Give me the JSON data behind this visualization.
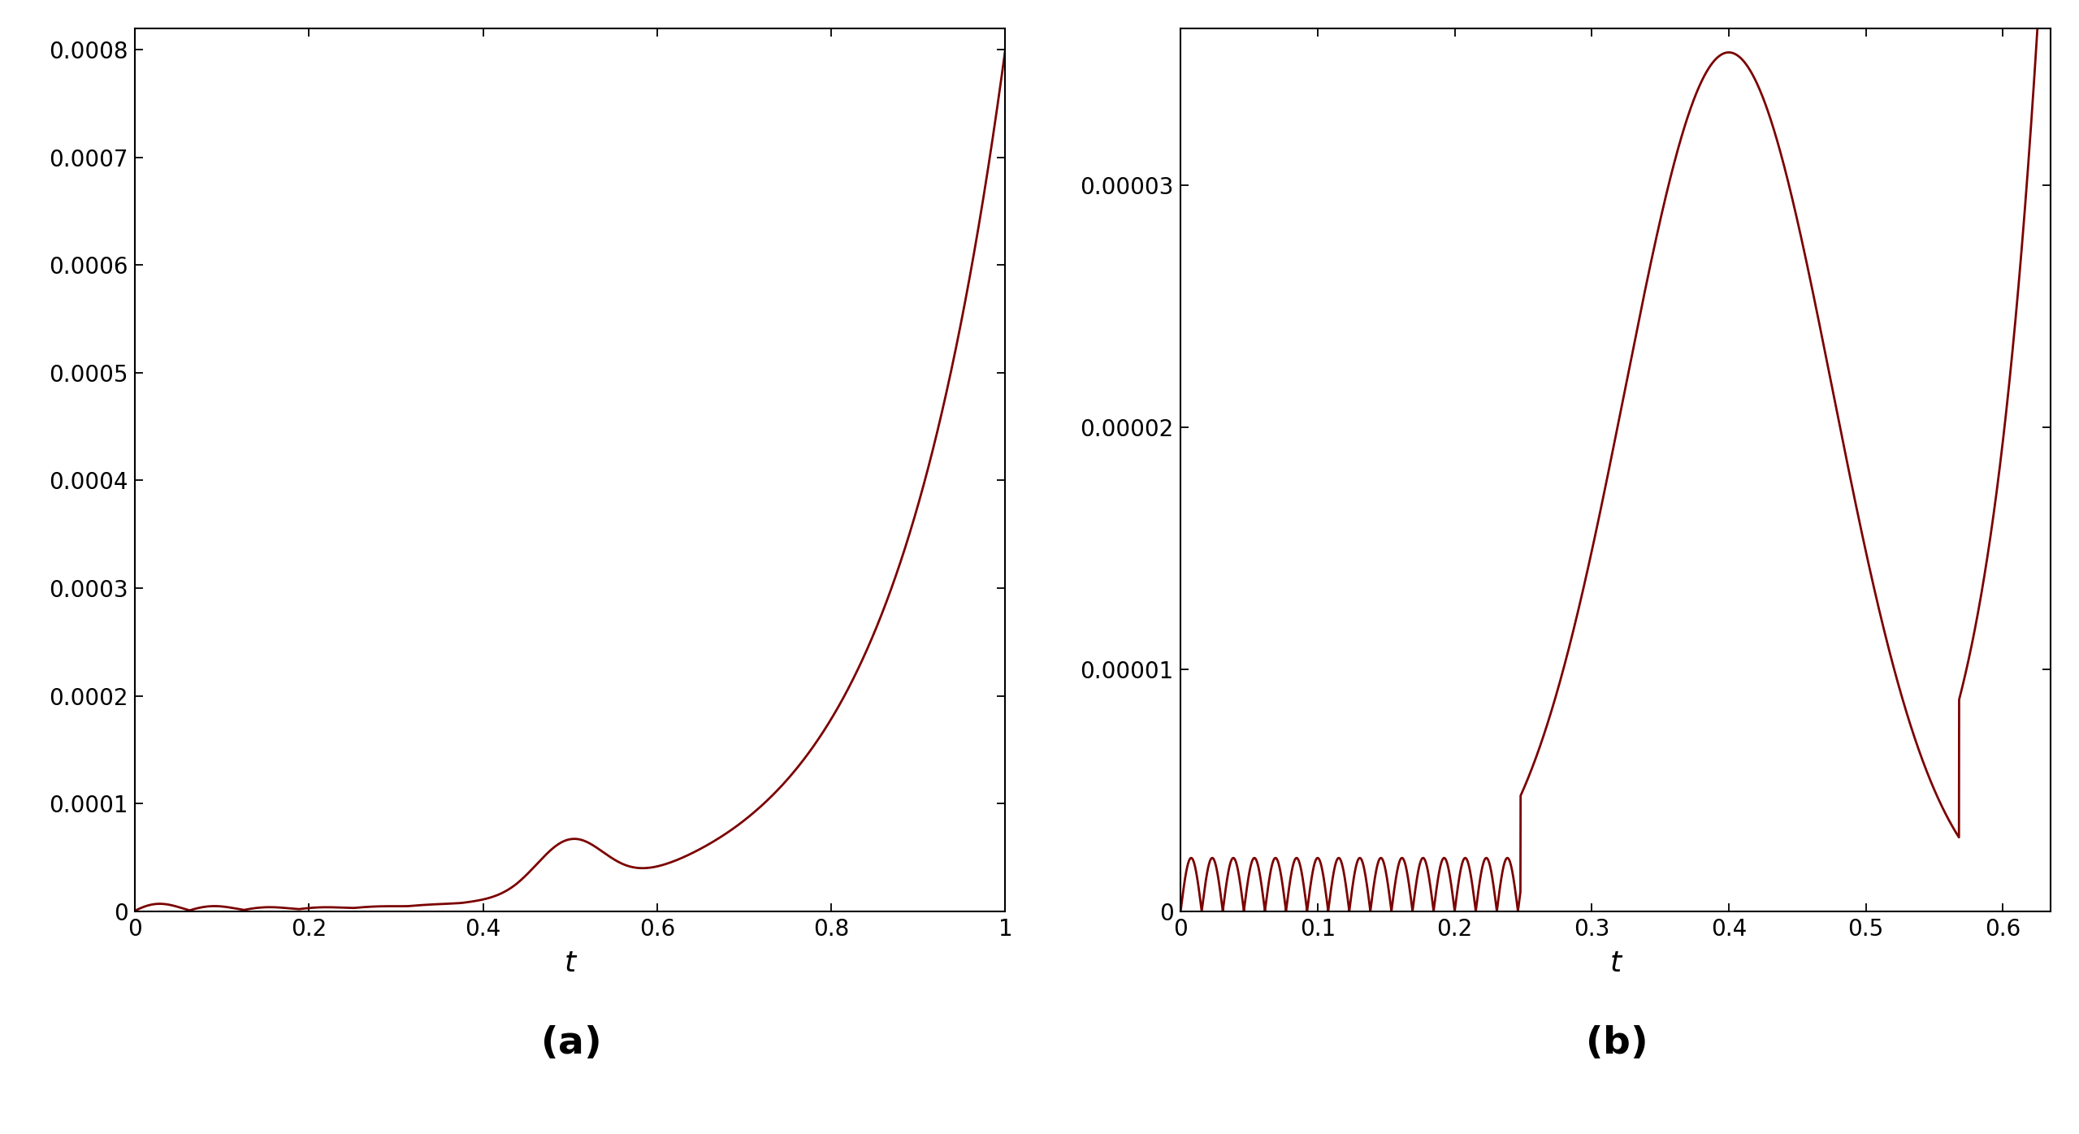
{
  "line_color": "#7B0000",
  "line_width": 2.0,
  "background_color": "#ffffff",
  "plot_a": {
    "x_min": 0,
    "x_max": 1.0,
    "y_min": 0,
    "y_max": 0.00082,
    "x_ticks": [
      0,
      0.2,
      0.4,
      0.6,
      0.8,
      1.0
    ],
    "y_ticks": [
      0,
      0.0001,
      0.0002,
      0.0003,
      0.0004,
      0.0005,
      0.0006,
      0.0007,
      0.0008
    ],
    "xlabel": "t",
    "label": "(a)"
  },
  "plot_b": {
    "x_min": 0,
    "x_max": 0.635,
    "y_min": 0,
    "y_max": 3.65e-05,
    "x_ticks": [
      0,
      0.1,
      0.2,
      0.3,
      0.4,
      0.5,
      0.6
    ],
    "y_ticks": [
      0,
      1e-05,
      2e-05,
      3e-05
    ],
    "xlabel": "t",
    "label": "(b)"
  }
}
